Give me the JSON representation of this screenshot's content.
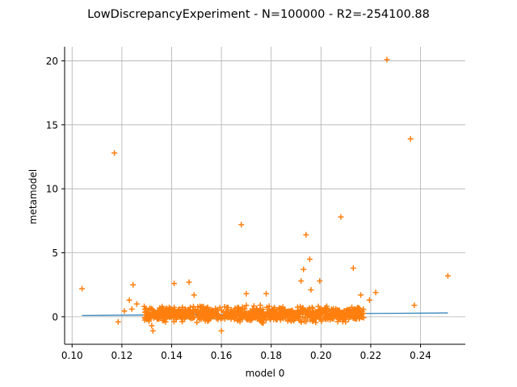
{
  "chart_data": {
    "type": "scatter",
    "title": "LowDiscrepancyExperiment - N=100000 - R2=-254100.88",
    "xlabel": "model 0",
    "ylabel": "metamodel",
    "xlim": [
      0.097,
      0.258
    ],
    "ylim": [
      -2.15,
      21.1
    ],
    "xticks": [
      0.1,
      0.12,
      0.14,
      0.16,
      0.18,
      0.2,
      0.22,
      0.24
    ],
    "xtick_labels": [
      "0.10",
      "0.12",
      "0.14",
      "0.16",
      "0.18",
      "0.20",
      "0.22",
      "0.24"
    ],
    "yticks": [
      0,
      5,
      10,
      15,
      20
    ],
    "ytick_labels": [
      "0",
      "5",
      "10",
      "15",
      "20"
    ],
    "grid": true,
    "colors": {
      "line": "#1f77b4",
      "points": "#ff7f0e",
      "grid": "#b0b0b0"
    },
    "series": [
      {
        "type": "line",
        "x": [
          0.104,
          0.251
        ],
        "y": [
          0.1,
          0.3
        ]
      },
      {
        "type": "scatter",
        "marker": "plus",
        "outliers": {
          "x": [
            0.104,
            0.117,
            0.1185,
            0.121,
            0.123,
            0.124,
            0.1245,
            0.126,
            0.129,
            0.132,
            0.1325,
            0.141,
            0.147,
            0.149,
            0.16,
            0.168,
            0.17,
            0.178,
            0.192,
            0.193,
            0.194,
            0.1955,
            0.196,
            0.1995,
            0.208,
            0.213,
            0.216,
            0.2195,
            0.222,
            0.2265,
            0.236,
            0.2375,
            0.251
          ],
          "y": [
            2.2,
            12.8,
            -0.4,
            0.45,
            1.3,
            0.6,
            2.5,
            1.0,
            0.8,
            -0.7,
            -1.1,
            2.6,
            2.7,
            1.7,
            -1.1,
            7.2,
            1.8,
            1.8,
            2.8,
            3.7,
            6.4,
            4.5,
            2.1,
            2.8,
            7.8,
            3.8,
            1.7,
            1.3,
            1.9,
            20.1,
            13.9,
            0.9,
            3.2
          ]
        },
        "cloud": {
          "x_range": [
            0.129,
            0.2175
          ],
          "y_range": [
            -0.6,
            1.0
          ],
          "count": 900
        }
      }
    ]
  }
}
